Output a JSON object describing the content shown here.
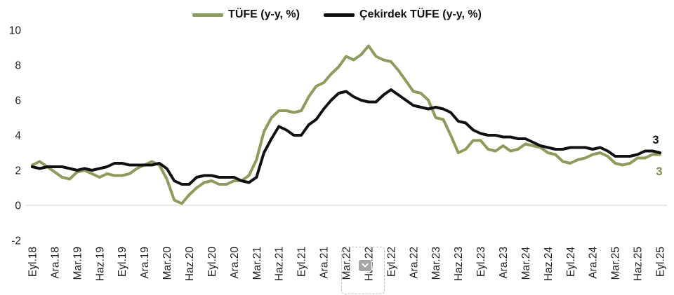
{
  "legend": {
    "items": [
      {
        "label": "TÜFE (y-y, %)",
        "color": "#8d9b5b"
      },
      {
        "label": "Çekirdek TÜFE (y-y, %)",
        "color": "#111111"
      }
    ]
  },
  "overlay": {
    "selection_icon": "chevron-down-icon"
  },
  "chart_data": {
    "type": "line",
    "title": "",
    "xlabel": "",
    "ylabel": "",
    "ylim": [
      -2,
      10
    ],
    "yticks": [
      -2,
      0,
      2,
      4,
      6,
      8,
      10
    ],
    "grid": "zero-line-only",
    "zero_line_color": "#d9d9d9",
    "legend_position": "top-center",
    "axis_text_color": "#1f1f1f",
    "x": [
      "2018-09",
      "2018-10",
      "2018-11",
      "2018-12",
      "2019-01",
      "2019-02",
      "2019-03",
      "2019-04",
      "2019-05",
      "2019-06",
      "2019-07",
      "2019-08",
      "2019-09",
      "2019-10",
      "2019-11",
      "2019-12",
      "2020-01",
      "2020-02",
      "2020-03",
      "2020-04",
      "2020-05",
      "2020-06",
      "2020-07",
      "2020-08",
      "2020-09",
      "2020-10",
      "2020-11",
      "2020-12",
      "2021-01",
      "2021-02",
      "2021-03",
      "2021-04",
      "2021-05",
      "2021-06",
      "2021-07",
      "2021-08",
      "2021-09",
      "2021-10",
      "2021-11",
      "2021-12",
      "2022-01",
      "2022-02",
      "2022-03",
      "2022-04",
      "2022-05",
      "2022-06",
      "2022-07",
      "2022-08",
      "2022-09",
      "2022-10",
      "2022-11",
      "2022-12",
      "2023-01",
      "2023-02",
      "2023-03",
      "2023-04",
      "2023-05",
      "2023-06",
      "2023-07",
      "2023-08",
      "2023-09",
      "2023-10",
      "2023-11",
      "2023-12",
      "2024-01",
      "2024-02",
      "2024-03",
      "2024-04",
      "2024-05",
      "2024-06",
      "2024-07",
      "2024-08",
      "2024-09",
      "2024-10",
      "2024-11",
      "2024-12",
      "2025-01",
      "2025-02",
      "2025-03",
      "2025-04",
      "2025-05",
      "2025-06",
      "2025-07",
      "2025-08",
      "2025-09"
    ],
    "xtick_labels": [
      "Eyl.18",
      "Ara.18",
      "Mar.19",
      "Haz.19",
      "Eyl.19",
      "Ara.19",
      "Mar.20",
      "Haz.20",
      "Eyl.20",
      "Ara.20",
      "Mar.21",
      "Haz.21",
      "Eyl.21",
      "Ara.21",
      "Mar.22",
      "Haz.22",
      "Eyl.22",
      "Ara.22",
      "Mar.23",
      "Haz.23",
      "Eyl.23",
      "Ara.23",
      "Mar.24",
      "Haz.24",
      "Eyl.24",
      "Ara.24",
      "Mar.25",
      "Haz.25",
      "Eyl.25"
    ],
    "xtick_every_n_months": 3,
    "series": [
      {
        "name": "TÜFE (y-y, %)",
        "color": "#8d9b5b",
        "values": [
          2.3,
          2.5,
          2.2,
          1.9,
          1.6,
          1.5,
          1.9,
          2.0,
          1.8,
          1.6,
          1.8,
          1.7,
          1.7,
          1.8,
          2.1,
          2.3,
          2.5,
          2.3,
          1.5,
          0.3,
          0.1,
          0.6,
          1.0,
          1.3,
          1.4,
          1.2,
          1.2,
          1.4,
          1.4,
          1.7,
          2.6,
          4.2,
          5.0,
          5.4,
          5.4,
          5.3,
          5.4,
          6.2,
          6.8,
          7.0,
          7.5,
          7.9,
          8.5,
          8.3,
          8.6,
          9.1,
          8.5,
          8.3,
          8.2,
          7.7,
          7.1,
          6.5,
          6.4,
          6.0,
          5.0,
          4.9,
          4.0,
          3.0,
          3.2,
          3.7,
          3.7,
          3.2,
          3.1,
          3.4,
          3.1,
          3.2,
          3.5,
          3.4,
          3.3,
          3.0,
          2.9,
          2.5,
          2.4,
          2.6,
          2.7,
          2.9,
          3.0,
          2.8,
          2.4,
          2.3,
          2.4,
          2.7,
          2.7,
          2.9,
          2.9
        ]
      },
      {
        "name": "Çekirdek TÜFE (y-y, %)",
        "color": "#111111",
        "values": [
          2.2,
          2.1,
          2.2,
          2.2,
          2.2,
          2.1,
          2.0,
          2.1,
          2.0,
          2.1,
          2.2,
          2.4,
          2.4,
          2.3,
          2.3,
          2.3,
          2.3,
          2.4,
          2.1,
          1.4,
          1.2,
          1.2,
          1.6,
          1.7,
          1.7,
          1.6,
          1.6,
          1.6,
          1.4,
          1.3,
          1.6,
          3.0,
          3.8,
          4.5,
          4.3,
          4.0,
          4.0,
          4.6,
          4.9,
          5.5,
          6.0,
          6.4,
          6.5,
          6.2,
          6.0,
          5.9,
          5.9,
          6.3,
          6.6,
          6.3,
          6.0,
          5.7,
          5.6,
          5.5,
          5.6,
          5.5,
          5.3,
          4.8,
          4.7,
          4.3,
          4.1,
          4.0,
          4.0,
          3.9,
          3.9,
          3.8,
          3.8,
          3.6,
          3.4,
          3.3,
          3.2,
          3.2,
          3.3,
          3.3,
          3.3,
          3.2,
          3.3,
          3.1,
          2.8,
          2.8,
          2.8,
          2.9,
          3.1,
          3.1,
          3.0
        ]
      }
    ],
    "end_labels": [
      {
        "series": "Çekirdek TÜFE (y-y, %)",
        "text": "3",
        "color": "#111111"
      },
      {
        "series": "TÜFE (y-y, %)",
        "text": "3",
        "color": "#7e8c48"
      }
    ]
  }
}
